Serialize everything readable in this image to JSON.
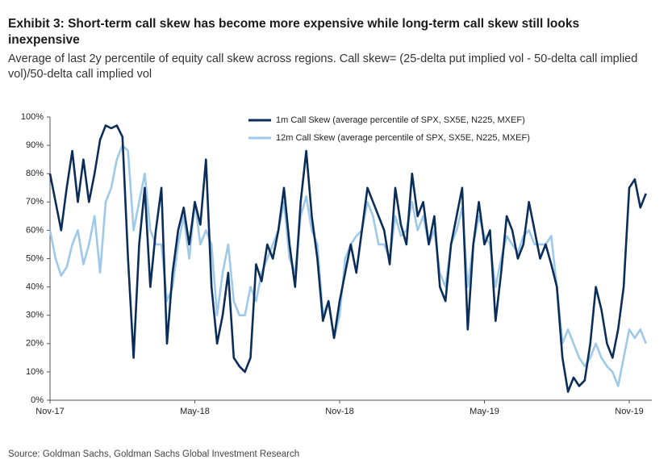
{
  "chart_data": {
    "type": "line",
    "title": "Exhibit 3: Short-term call skew has become more expensive while long-term call skew still looks inexpensive",
    "subtitle": "Average of last 2y percentile of equity call skew across regions. Call skew= (25-delta put implied vol - 50-delta call implied vol)/50-delta call implied vol",
    "source": "Source: Goldman Sachs, Goldman Sachs Global Investment Research",
    "categories": [
      "Nov-17",
      null,
      null,
      null,
      null,
      null,
      null,
      null,
      null,
      null,
      null,
      null,
      null,
      null,
      null,
      null,
      null,
      null,
      null,
      null,
      null,
      null,
      null,
      null,
      null,
      null,
      "May-18",
      null,
      null,
      null,
      null,
      null,
      null,
      null,
      null,
      null,
      null,
      null,
      null,
      null,
      null,
      null,
      null,
      null,
      null,
      null,
      null,
      null,
      null,
      null,
      null,
      null,
      "Nov-18",
      null,
      null,
      null,
      null,
      null,
      null,
      null,
      null,
      null,
      null,
      null,
      null,
      null,
      null,
      null,
      null,
      null,
      null,
      null,
      null,
      null,
      null,
      null,
      null,
      null,
      "May-19",
      null,
      null,
      null,
      null,
      null,
      null,
      null,
      null,
      null,
      null,
      null,
      null,
      null,
      null,
      null,
      null,
      null,
      null,
      null,
      null,
      null,
      null,
      null,
      null,
      null,
      "Nov-19",
      null,
      null,
      null
    ],
    "series": [
      {
        "name": "1m Call Skew (average percentile of SPX, SX5E, N225, MXEF)",
        "color": "#0b2d59",
        "values": [
          80,
          70,
          60,
          75,
          88,
          70,
          85,
          70,
          80,
          92,
          97,
          96,
          97,
          93,
          50,
          15,
          55,
          75,
          40,
          60,
          75,
          20,
          45,
          60,
          68,
          55,
          70,
          62,
          85,
          40,
          20,
          30,
          45,
          15,
          12,
          10,
          15,
          48,
          42,
          55,
          50,
          60,
          75,
          55,
          40,
          70,
          88,
          65,
          50,
          28,
          35,
          22,
          35,
          45,
          55,
          45,
          60,
          75,
          70,
          65,
          60,
          48,
          75,
          62,
          55,
          80,
          65,
          70,
          55,
          65,
          40,
          35,
          55,
          65,
          75,
          25,
          55,
          70,
          55,
          60,
          28,
          45,
          65,
          60,
          50,
          55,
          70,
          60,
          50,
          55,
          48,
          40,
          15,
          3,
          8,
          5,
          7,
          20,
          40,
          32,
          20,
          15,
          25,
          40,
          75,
          78,
          68,
          73
        ]
      },
      {
        "name": "12m Call Skew (average percentile of SPX, SX5E, N225, MXEF)",
        "color": "#9ec9e8",
        "values": [
          60,
          50,
          44,
          47,
          55,
          60,
          48,
          55,
          65,
          45,
          70,
          75,
          85,
          90,
          88,
          60,
          70,
          80,
          60,
          55,
          55,
          35,
          40,
          55,
          65,
          50,
          70,
          55,
          60,
          55,
          30,
          45,
          55,
          35,
          30,
          30,
          40,
          35,
          45,
          50,
          55,
          60,
          70,
          50,
          45,
          65,
          72,
          60,
          55,
          30,
          35,
          22,
          30,
          50,
          55,
          58,
          60,
          70,
          65,
          55,
          55,
          50,
          65,
          58,
          60,
          70,
          60,
          65,
          55,
          60,
          45,
          40,
          55,
          60,
          68,
          40,
          55,
          65,
          58,
          55,
          40,
          50,
          58,
          55,
          52,
          58,
          60,
          55,
          55,
          55,
          58,
          40,
          20,
          25,
          20,
          15,
          12,
          15,
          20,
          15,
          12,
          10,
          5,
          15,
          25,
          22,
          25,
          20
        ]
      }
    ],
    "ylim": [
      0,
      100
    ],
    "yticks": [
      {
        "value": 0,
        "label": "0%"
      },
      {
        "value": 10,
        "label": "10%"
      },
      {
        "value": 20,
        "label": "20%"
      },
      {
        "value": 30,
        "label": "30%"
      },
      {
        "value": 40,
        "label": "40%"
      },
      {
        "value": 50,
        "label": "50%"
      },
      {
        "value": 60,
        "label": "60%"
      },
      {
        "value": 70,
        "label": "70%"
      },
      {
        "value": 80,
        "label": "80%"
      },
      {
        "value": 90,
        "label": "90%"
      },
      {
        "value": 100,
        "label": "100%"
      }
    ],
    "grid": false,
    "legend": "upper center"
  }
}
